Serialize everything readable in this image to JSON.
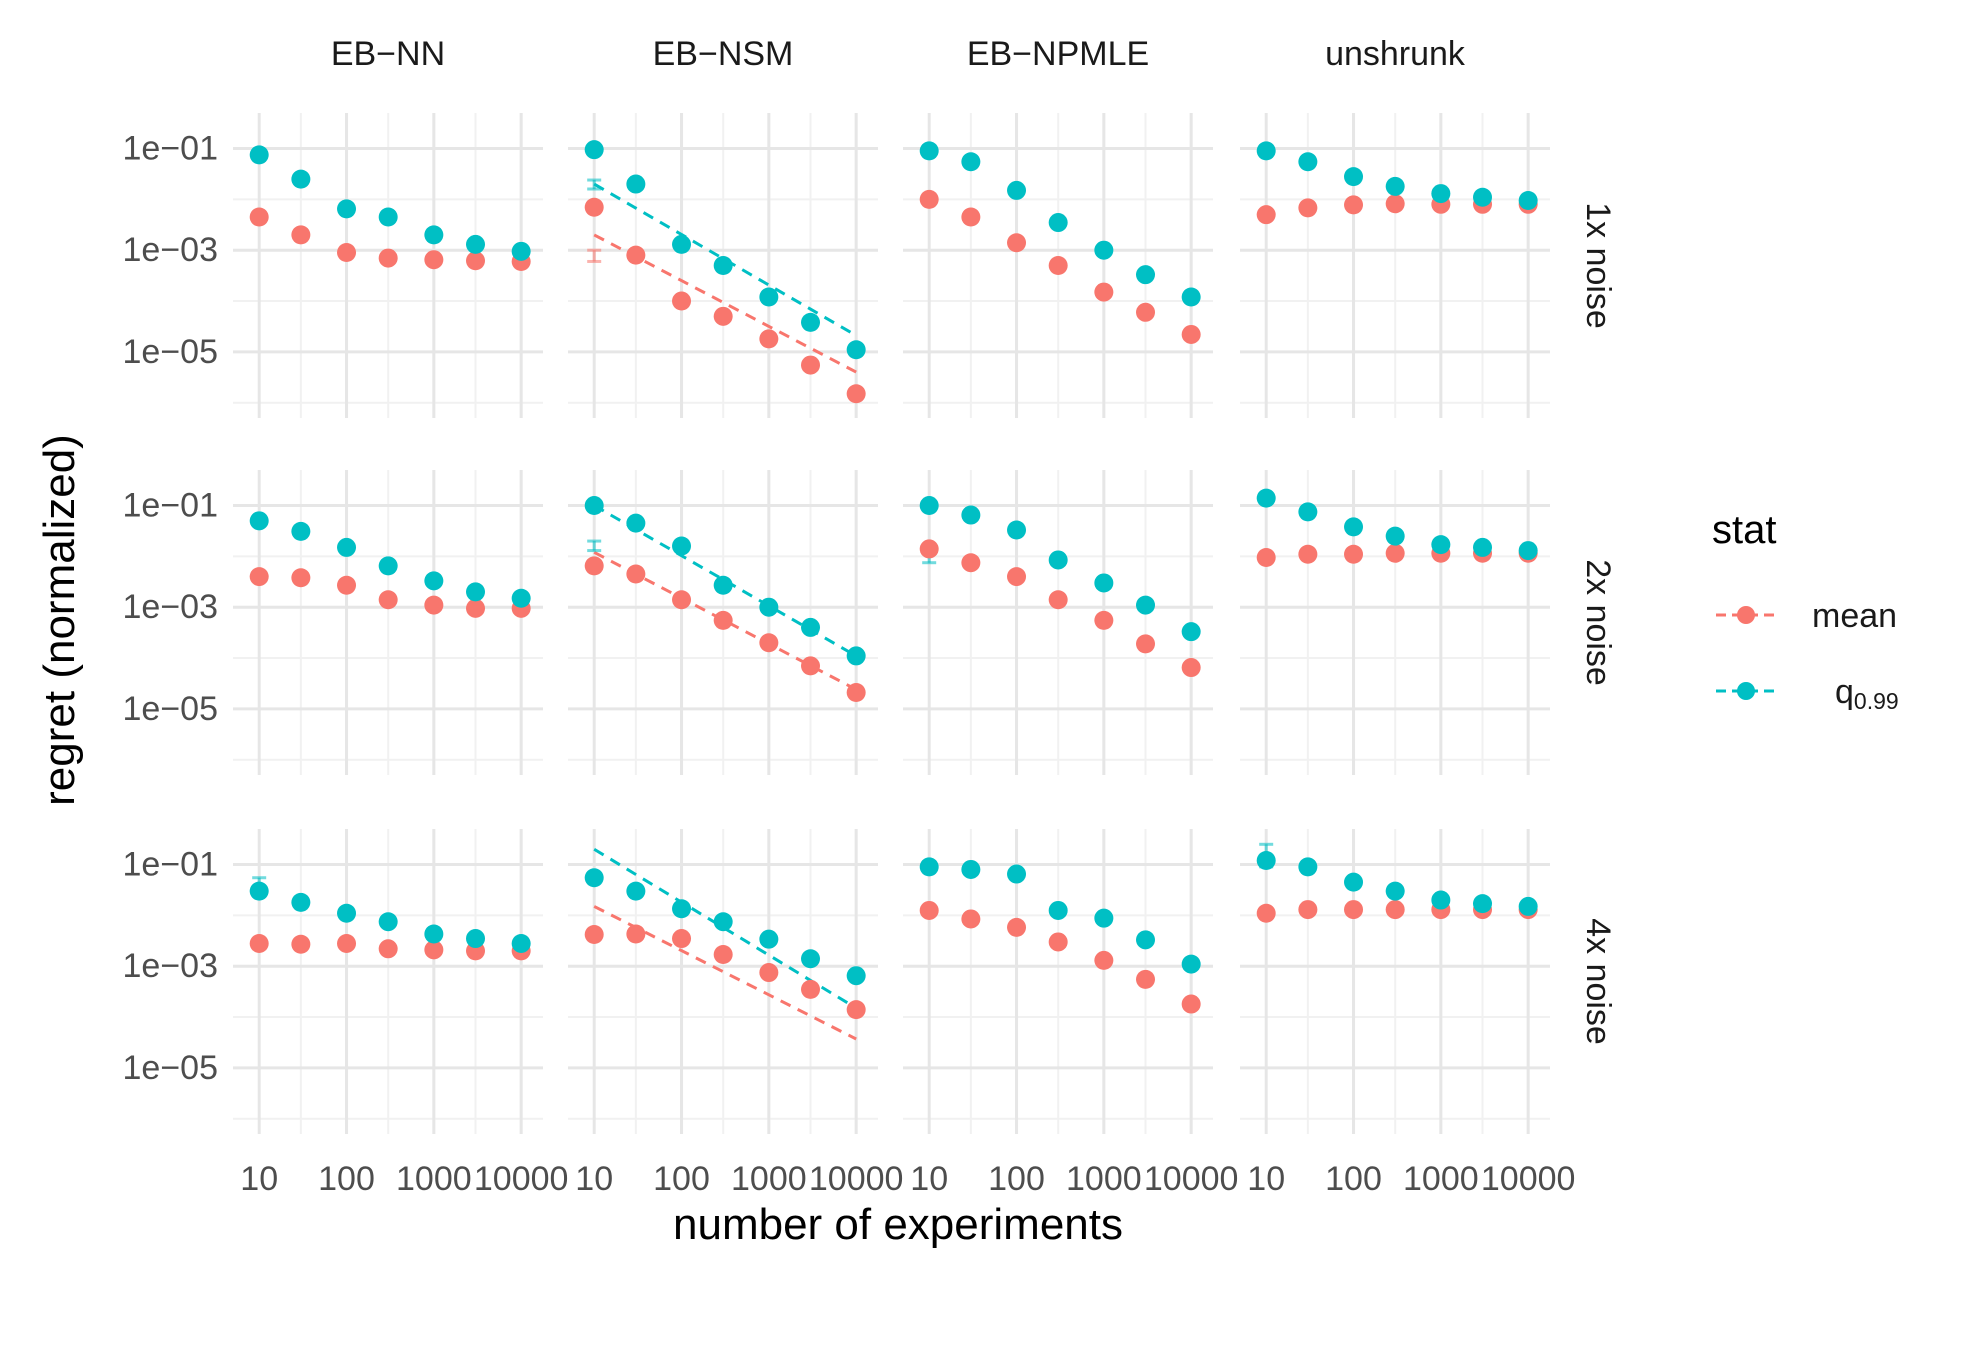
{
  "chart_data": {
    "type": "scatter",
    "title": "",
    "xlabel": "number of experiments",
    "ylabel": "regret (normalized)",
    "x_scale": "log10",
    "y_scale": "log10",
    "x": [
      10,
      30,
      100,
      300,
      1000,
      3000,
      10000
    ],
    "x_ticks": [
      10,
      100,
      1000,
      10000
    ],
    "x_tick_labels": [
      "10",
      "100",
      "1000",
      "10000"
    ],
    "y_ticks": [
      0.1,
      0.001,
      1e-05
    ],
    "y_tick_labels": [
      "1e−01",
      "1e−03",
      "1e−05"
    ],
    "ylim": [
      5e-07,
      0.5
    ],
    "columns": [
      "EB−NN",
      "EB−NSM",
      "EB−NPMLE",
      "unshrunk"
    ],
    "rows": [
      "1x noise",
      "2x noise",
      "4x noise"
    ],
    "legend": {
      "title": "stat",
      "position": "right",
      "items": [
        {
          "key": "mean",
          "label": "mean",
          "color": "#F8766D"
        },
        {
          "key": "q",
          "label_base": "q",
          "label_sub": "0.99",
          "color": "#00BFC4"
        }
      ]
    },
    "panels": [
      {
        "row": 0,
        "col": 0,
        "mean": [
          0.0045,
          0.002,
          0.0009,
          0.0007,
          0.00065,
          0.00062,
          0.0006
        ],
        "q": [
          0.075,
          0.025,
          0.0065,
          0.0045,
          0.002,
          0.0013,
          0.00095
        ],
        "err_q": [
          [
            0.062,
            0.085
          ]
        ]
      },
      {
        "row": 0,
        "col": 1,
        "mean": [
          0.007,
          0.0008,
          0.0001,
          5e-05,
          1.8e-05,
          5.5e-06,
          1.5e-06
        ],
        "q": [
          0.095,
          0.02,
          0.0013,
          0.0005,
          0.00012,
          3.8e-05,
          1.1e-05
        ],
        "fit_mean": [
          0.002,
          4e-06
        ],
        "fit_q": [
          0.02,
          2.1e-05
        ],
        "err_mean": [
          [
            0.0006,
            0.001
          ]
        ],
        "err_q": [
          [
            0.016,
            0.024
          ]
        ]
      },
      {
        "row": 0,
        "col": 2,
        "mean": [
          0.01,
          0.0045,
          0.0014,
          0.0005,
          0.00015,
          6e-05,
          2.2e-05
        ],
        "q": [
          0.09,
          0.055,
          0.015,
          0.0035,
          0.001,
          0.00033,
          0.00012
        ]
      },
      {
        "row": 0,
        "col": 3,
        "mean": [
          0.005,
          0.0068,
          0.0078,
          0.0082,
          0.008,
          0.008,
          0.008
        ],
        "q": [
          0.09,
          0.055,
          0.028,
          0.018,
          0.013,
          0.011,
          0.0095
        ]
      },
      {
        "row": 1,
        "col": 0,
        "mean": [
          0.004,
          0.0038,
          0.0027,
          0.0014,
          0.0011,
          0.00095,
          0.00095
        ],
        "q": [
          0.05,
          0.031,
          0.015,
          0.0065,
          0.0033,
          0.002,
          0.0015
        ]
      },
      {
        "row": 1,
        "col": 1,
        "mean": [
          0.0065,
          0.0045,
          0.0014,
          0.00055,
          0.0002,
          7e-05,
          2.1e-05
        ],
        "q": [
          0.1,
          0.045,
          0.016,
          0.0027,
          0.001,
          0.0004,
          0.00011
        ],
        "fit_mean": [
          0.012,
          2.4e-05
        ],
        "fit_q": [
          0.1,
          0.00011
        ],
        "err_q": [
          [
            0.013,
            0.02
          ]
        ]
      },
      {
        "row": 1,
        "col": 2,
        "mean": [
          0.014,
          0.0075,
          0.004,
          0.0014,
          0.00055,
          0.00019,
          6.5e-05
        ],
        "q": [
          0.1,
          0.065,
          0.033,
          0.0085,
          0.003,
          0.0011,
          0.00033
        ],
        "err_q": [
          [
            0.0075,
            0.013
          ]
        ]
      },
      {
        "row": 1,
        "col": 3,
        "mean": [
          0.0095,
          0.011,
          0.011,
          0.0115,
          0.0115,
          0.0115,
          0.0115
        ],
        "q": [
          0.14,
          0.075,
          0.038,
          0.025,
          0.017,
          0.015,
          0.013
        ]
      },
      {
        "row": 2,
        "col": 0,
        "mean": [
          0.0028,
          0.0027,
          0.0028,
          0.0022,
          0.0021,
          0.002,
          0.002
        ],
        "q": [
          0.03,
          0.018,
          0.011,
          0.0075,
          0.0043,
          0.0035,
          0.0028
        ],
        "err_mean": [
          [
            0.0022,
            0.0033
          ]
        ],
        "err_q": [
          [
            0.024,
            0.055
          ]
        ]
      },
      {
        "row": 2,
        "col": 1,
        "mean": [
          0.0042,
          0.0043,
          0.0035,
          0.0017,
          0.00075,
          0.00035,
          0.00014
        ],
        "q": [
          0.055,
          0.03,
          0.0135,
          0.0075,
          0.0034,
          0.0014,
          0.00065
        ],
        "fit_mean": [
          0.015,
          3.7e-05
        ],
        "fit_q": [
          0.2,
          0.00015
        ]
      },
      {
        "row": 2,
        "col": 2,
        "mean": [
          0.0125,
          0.0085,
          0.0058,
          0.003,
          0.0013,
          0.00055,
          0.00018
        ],
        "q": [
          0.09,
          0.08,
          0.065,
          0.0125,
          0.0088,
          0.0033,
          0.0011
        ]
      },
      {
        "row": 2,
        "col": 3,
        "mean": [
          0.011,
          0.013,
          0.013,
          0.013,
          0.013,
          0.013,
          0.013
        ],
        "q": [
          0.12,
          0.09,
          0.045,
          0.03,
          0.02,
          0.017,
          0.015
        ],
        "err_q": [
          [
            0.09,
            0.25
          ]
        ]
      }
    ]
  }
}
